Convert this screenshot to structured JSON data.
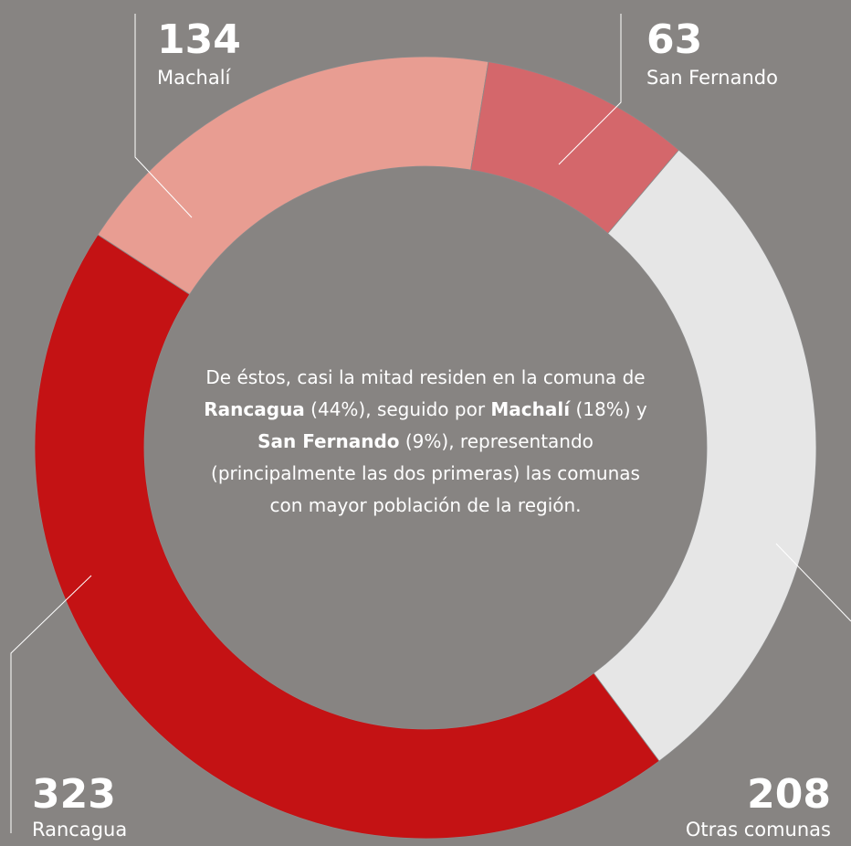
{
  "chart_data": {
    "type": "donut",
    "categories": [
      "Machalí",
      "San Fernando",
      "Otras comunas",
      "Rancagua"
    ],
    "values": [
      134,
      63,
      208,
      323
    ],
    "colors": [
      "#e89d92",
      "#d4676b",
      "#e6e6e6",
      "#c41214"
    ],
    "annotation": [
      "De éstos, casi la mitad residen en la comuna de ",
      "Rancagua",
      " (44%), seguido por ",
      "Machalí",
      " (18%) y ",
      "San Fernando",
      " (9%), representando (principalmente las dos primeras) las comunas con mayor población de la región."
    ]
  }
}
